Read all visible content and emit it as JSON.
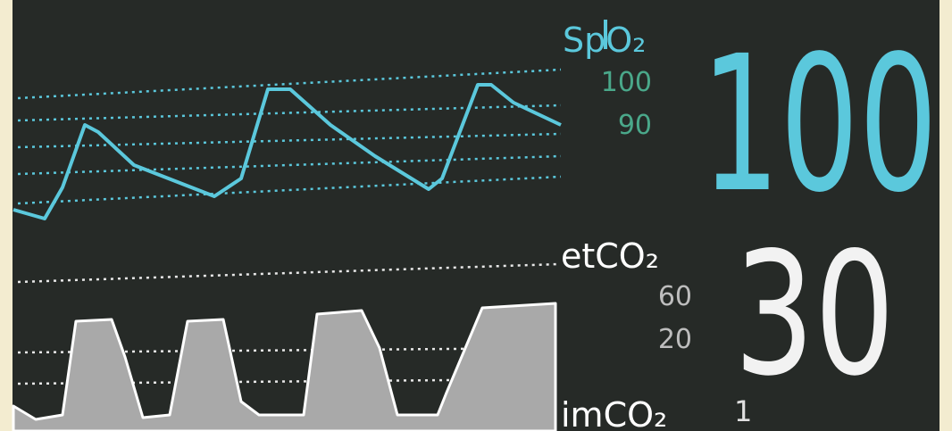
{
  "spo2": {
    "label": "SpO₂",
    "limit_high": 100,
    "limit_low": 90,
    "value": 100
  },
  "etco2": {
    "label": "etCO₂",
    "limit_high": 60,
    "limit_low": 20,
    "value": 30
  },
  "imco2": {
    "label": "imCO₂",
    "value": 1
  }
}
